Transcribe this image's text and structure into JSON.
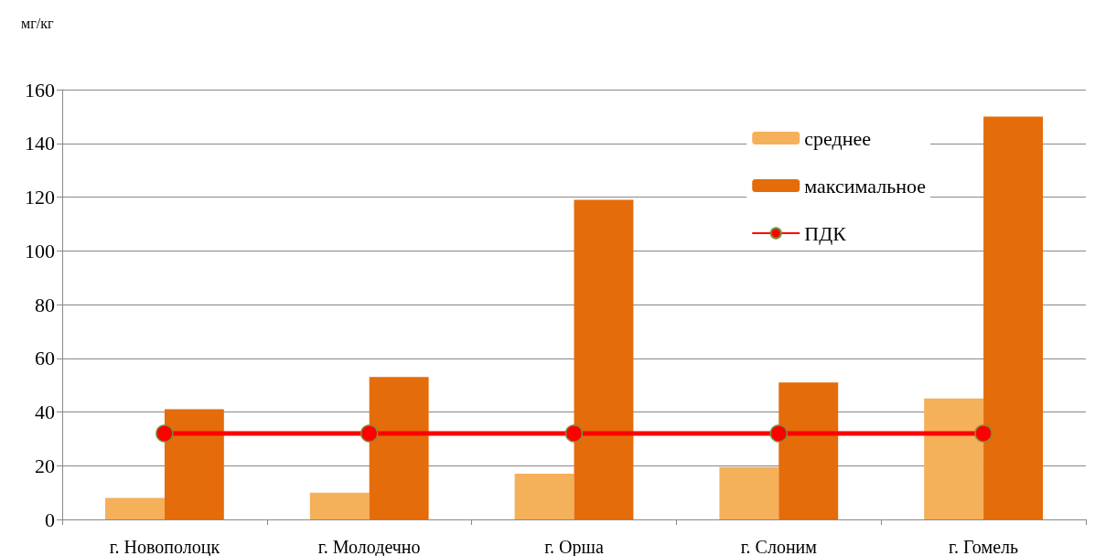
{
  "chart_data": {
    "type": "bar",
    "ylabel": "мг/кг",
    "categories": [
      "г. Новополоцк",
      "г. Молодечно",
      "г. Орша",
      "г. Слоним",
      "г. Гомель"
    ],
    "series": [
      {
        "name": "среднее",
        "color": "#f5b05a",
        "values": [
          8,
          10,
          17,
          19.5,
          45
        ]
      },
      {
        "name": "максимальное",
        "color": "#e46c0a",
        "values": [
          41,
          53,
          119,
          51,
          150
        ]
      },
      {
        "name": "ПДК",
        "type": "line",
        "color": "#ff0000",
        "values": [
          32,
          32,
          32,
          32,
          32
        ]
      }
    ],
    "ylim": [
      0,
      160
    ],
    "yticks": [
      0,
      20,
      40,
      60,
      80,
      100,
      120,
      140,
      160
    ],
    "grid": "y",
    "legend": "top right",
    "marker": "circle"
  }
}
